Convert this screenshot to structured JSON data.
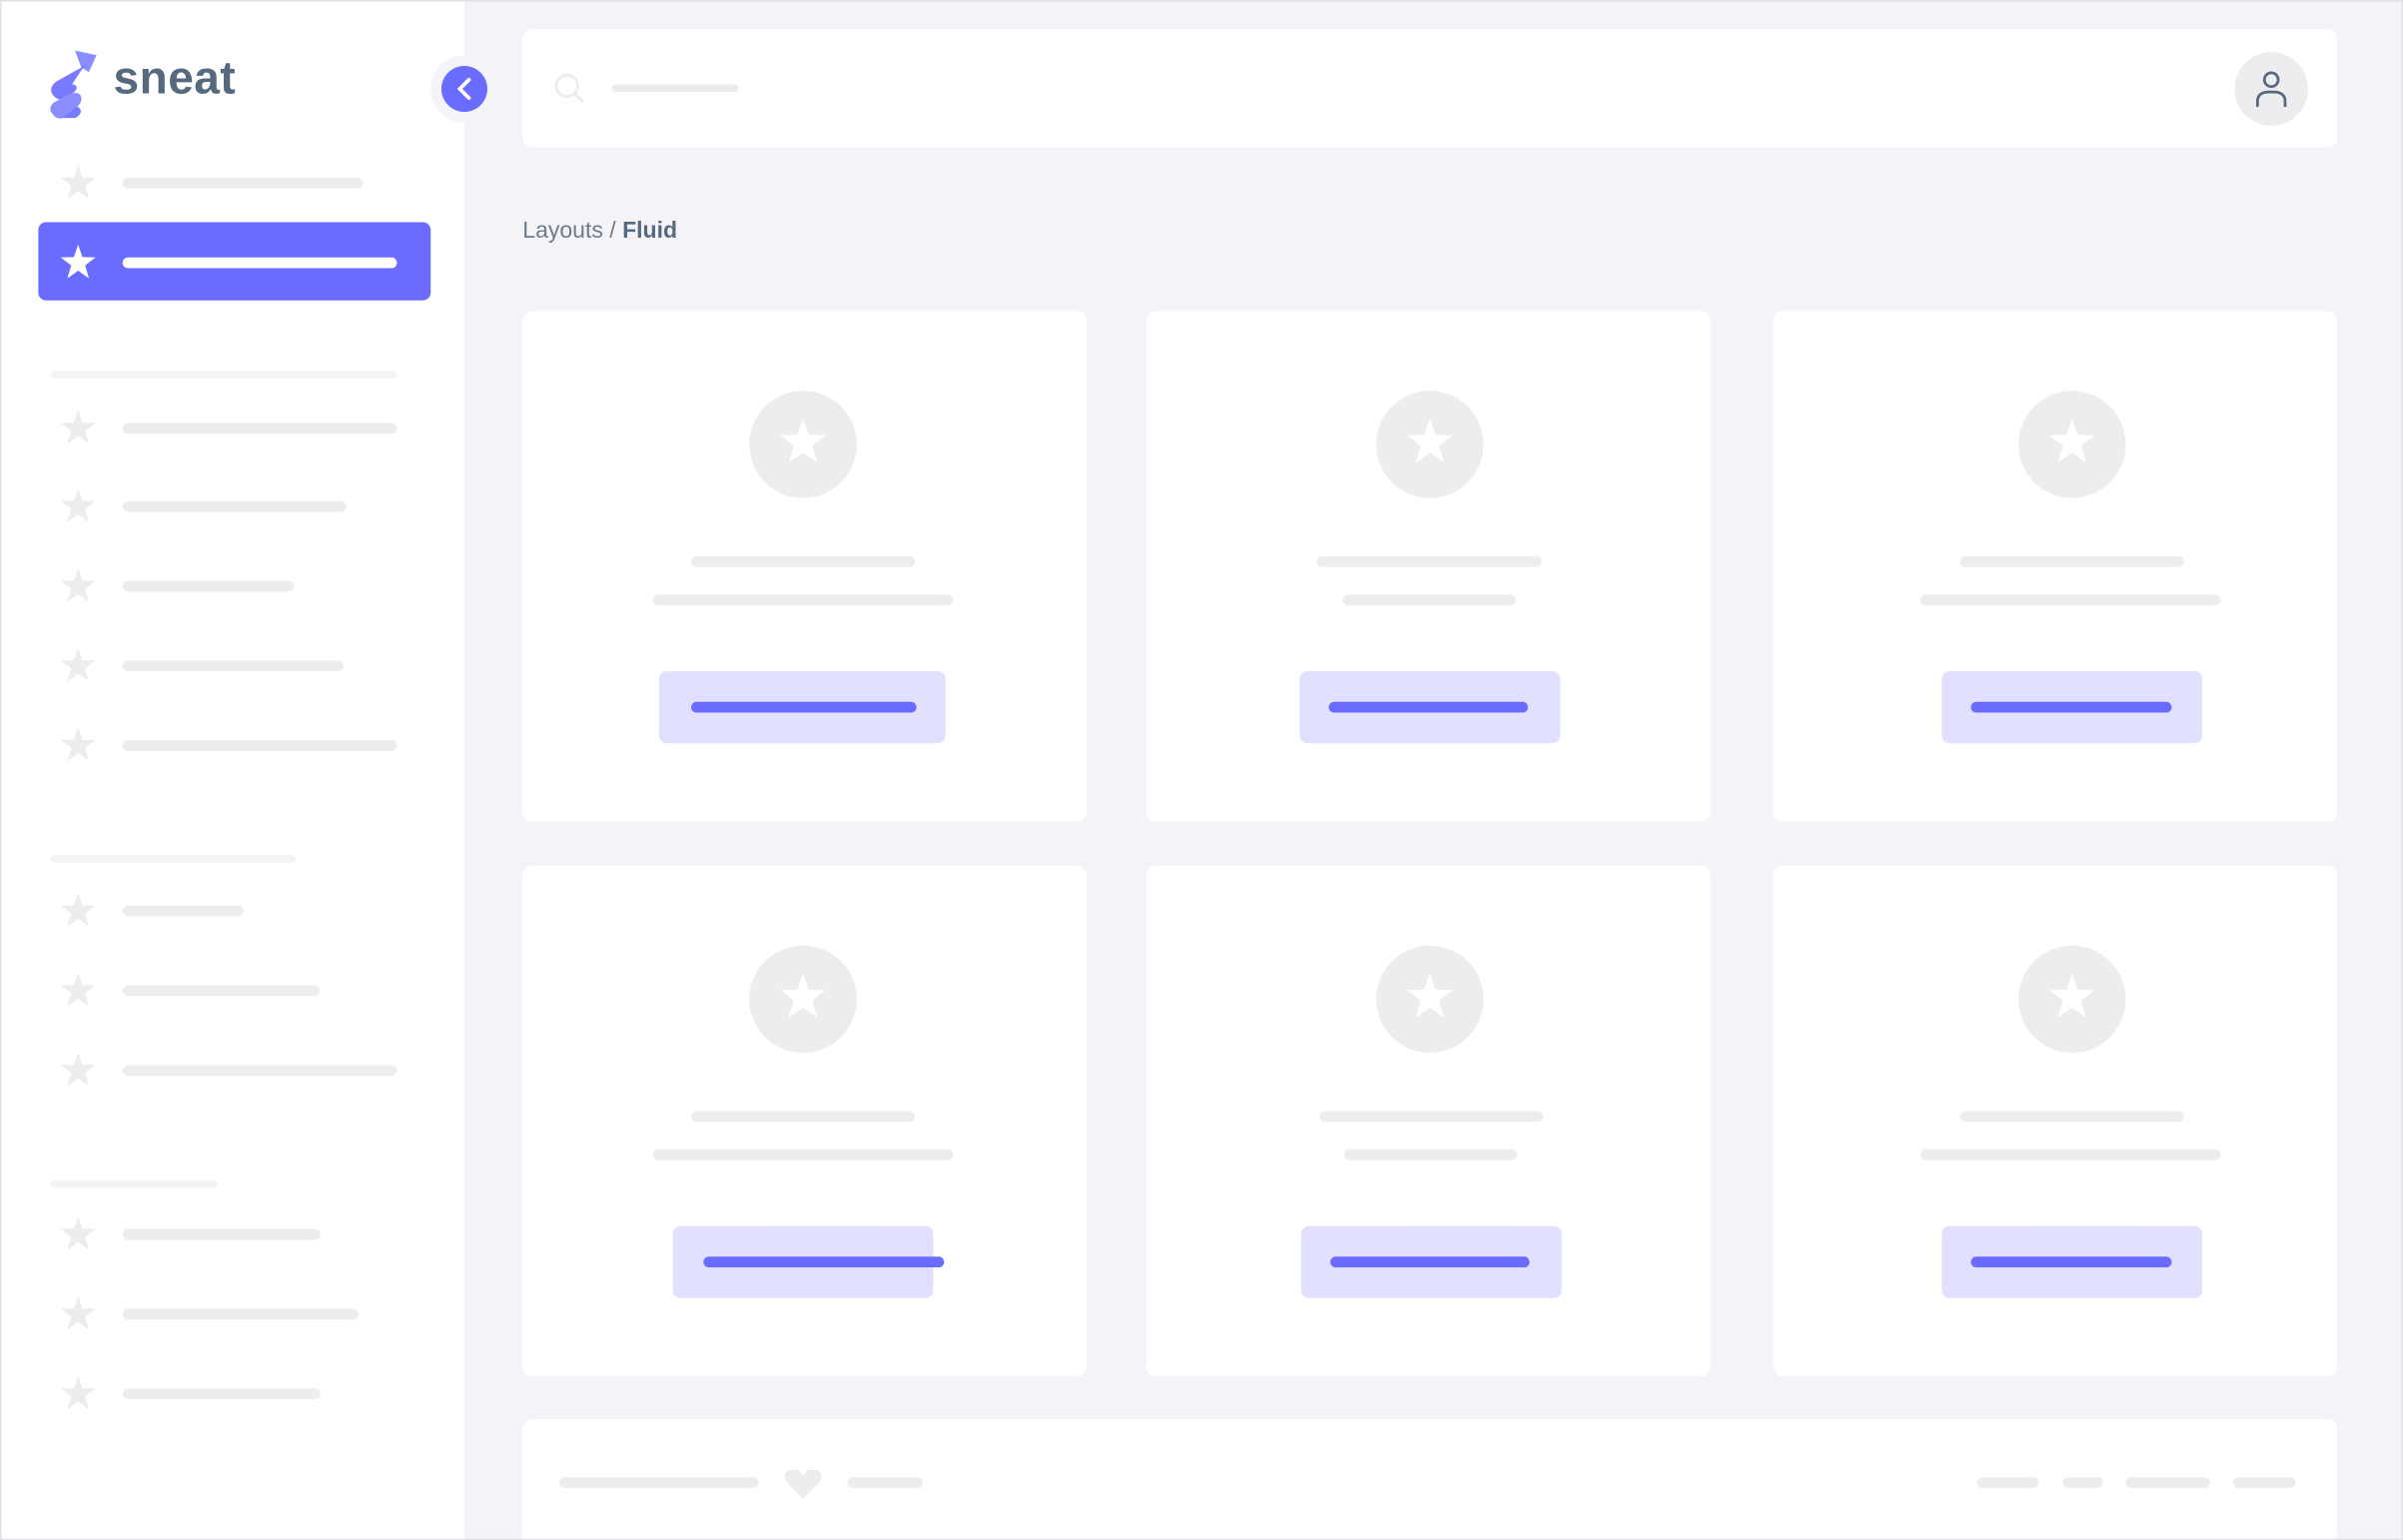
{
  "brand": {
    "name": "sneat",
    "logo_icon": "sneat-logo-icon"
  },
  "colors": {
    "primary": "#696cff",
    "primary_light": "#e1e0fe",
    "skeleton": "#ededf0",
    "background": "#f4f4f8",
    "text": "#566a7f"
  },
  "sidebar": {
    "toggle_icon": "chevron-left-icon",
    "item_icon": "star-icon",
    "active_item_index": 1,
    "sections": [
      {
        "items": 2
      },
      {
        "items": 5
      },
      {
        "items": 3
      },
      {
        "items": 3
      }
    ]
  },
  "navbar": {
    "search_icon": "search-icon",
    "user_icon": "user-icon"
  },
  "breadcrumb": {
    "parent": "Layouts",
    "separator": " / ",
    "current": "Fluid"
  },
  "cards": {
    "count": 6,
    "icon": "star-icon"
  },
  "footer": {
    "icon": "heart-icon"
  }
}
